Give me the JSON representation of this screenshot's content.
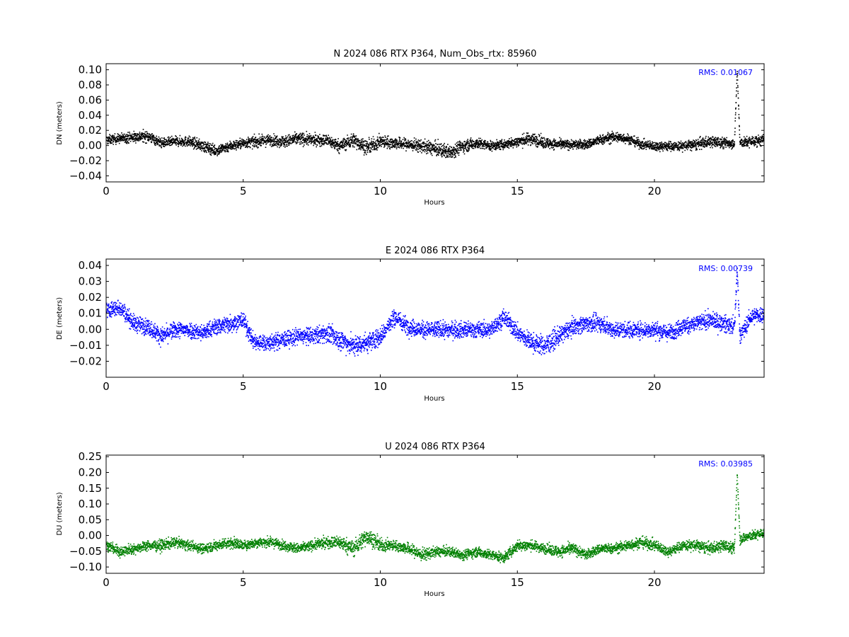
{
  "chart_data": [
    {
      "type": "scatter",
      "title": "N 2024 086 RTX  P364, Num_Obs_rtx: 85960",
      "xlabel": "Hours",
      "ylabel": "DN (meters)",
      "xlim": [
        0,
        24
      ],
      "ylim": [
        -0.048,
        0.108
      ],
      "xticks": [
        0,
        5,
        10,
        15,
        20
      ],
      "yticks": [
        -0.04,
        -0.02,
        0.0,
        0.02,
        0.04,
        0.06,
        0.08,
        0.1
      ],
      "ytick_labels": [
        "−0.04",
        "−0.02",
        "0.00",
        "0.02",
        "0.04",
        "0.06",
        "0.08",
        "0.10"
      ],
      "rms_text": "RMS:  0.01067",
      "color": "#000000",
      "series": [
        {
          "x": [
            0,
            0.5,
            1.0,
            1.5,
            2.0,
            2.5,
            3.0,
            3.5,
            4.0,
            4.5,
            5.0,
            5.5,
            6.0,
            6.5,
            7.0,
            7.5,
            8.0,
            8.5,
            9.0,
            9.5,
            10.0,
            10.5,
            11.0,
            11.5,
            12.0,
            12.5,
            13.0,
            13.5,
            14.0,
            14.5,
            15.0,
            15.5,
            16.0,
            16.5,
            17.0,
            17.5,
            18.0,
            18.5,
            19.0,
            19.5,
            20.0,
            20.5,
            21.0,
            21.5,
            22.0,
            22.5,
            22.9,
            23.0,
            23.1,
            23.5,
            24.0
          ],
          "center": [
            0.008,
            0.01,
            0.012,
            0.013,
            0.004,
            0.006,
            0.006,
            0.0,
            -0.006,
            0.0,
            0.004,
            0.006,
            0.008,
            0.006,
            0.01,
            0.008,
            0.008,
            0.0,
            0.008,
            -0.002,
            0.006,
            0.004,
            0.002,
            0.0,
            -0.004,
            -0.008,
            0.0,
            0.004,
            0.0,
            0.002,
            0.006,
            0.01,
            0.004,
            0.002,
            0.002,
            0.002,
            0.008,
            0.012,
            0.01,
            0.002,
            0.0,
            0.0,
            0.0,
            0.002,
            0.006,
            0.004,
            0.004,
            0.1,
            0.004,
            0.006,
            0.008
          ],
          "spread": [
            0.012,
            0.012,
            0.014,
            0.014,
            0.012,
            0.012,
            0.013,
            0.014,
            0.014,
            0.013,
            0.013,
            0.014,
            0.014,
            0.015,
            0.016,
            0.014,
            0.015,
            0.016,
            0.018,
            0.018,
            0.016,
            0.015,
            0.015,
            0.016,
            0.018,
            0.018,
            0.016,
            0.014,
            0.012,
            0.012,
            0.014,
            0.016,
            0.014,
            0.012,
            0.012,
            0.012,
            0.012,
            0.014,
            0.012,
            0.012,
            0.012,
            0.012,
            0.012,
            0.014,
            0.014,
            0.014,
            0.012,
            0.004,
            0.012,
            0.014,
            0.014
          ]
        }
      ]
    },
    {
      "type": "scatter",
      "title": "E 2024 086 RTX  P364",
      "xlabel": "Hours",
      "ylabel": "DE (meters)",
      "xlim": [
        0,
        24
      ],
      "ylim": [
        -0.03,
        0.044
      ],
      "xticks": [
        0,
        5,
        10,
        15,
        20
      ],
      "yticks": [
        -0.02,
        -0.01,
        0.0,
        0.01,
        0.02,
        0.03,
        0.04
      ],
      "ytick_labels": [
        "−0.02",
        "−0.01",
        "0.00",
        "0.01",
        "0.02",
        "0.03",
        "0.04"
      ],
      "rms_text": "RMS:  0.00739",
      "color": "#0000ff",
      "series": [
        {
          "x": [
            0,
            0.5,
            1.0,
            1.5,
            2.0,
            2.5,
            3.0,
            3.5,
            4.0,
            4.5,
            5.0,
            5.3,
            5.5,
            6.0,
            6.5,
            7.0,
            7.5,
            8.0,
            8.5,
            9.0,
            9.5,
            10.0,
            10.5,
            11.0,
            11.5,
            12.0,
            12.5,
            13.0,
            13.5,
            14.0,
            14.5,
            15.0,
            15.5,
            16.0,
            16.5,
            17.0,
            17.5,
            18.0,
            18.5,
            19.0,
            19.5,
            20.0,
            20.5,
            21.0,
            21.5,
            22.0,
            22.5,
            22.9,
            23.0,
            23.1,
            23.5,
            24.0
          ],
          "center": [
            0.012,
            0.014,
            0.004,
            0.002,
            -0.004,
            0.0,
            0.0,
            -0.002,
            0.002,
            0.004,
            0.006,
            -0.006,
            -0.008,
            -0.008,
            -0.006,
            -0.004,
            -0.004,
            -0.002,
            -0.006,
            -0.01,
            -0.008,
            -0.004,
            0.008,
            0.002,
            0.0,
            0.0,
            0.0,
            0.0,
            0.0,
            0.0,
            0.008,
            -0.002,
            -0.008,
            -0.01,
            -0.004,
            0.002,
            0.004,
            0.004,
            0.0,
            0.0,
            0.0,
            0.0,
            -0.002,
            0.002,
            0.004,
            0.006,
            0.004,
            0.002,
            0.038,
            -0.004,
            0.008,
            0.01
          ],
          "spread": [
            0.01,
            0.01,
            0.01,
            0.01,
            0.01,
            0.01,
            0.01,
            0.01,
            0.01,
            0.011,
            0.01,
            0.01,
            0.01,
            0.01,
            0.01,
            0.01,
            0.01,
            0.011,
            0.012,
            0.012,
            0.012,
            0.011,
            0.011,
            0.01,
            0.01,
            0.01,
            0.01,
            0.01,
            0.01,
            0.009,
            0.01,
            0.011,
            0.011,
            0.012,
            0.011,
            0.01,
            0.01,
            0.01,
            0.01,
            0.01,
            0.01,
            0.01,
            0.01,
            0.01,
            0.01,
            0.01,
            0.01,
            0.01,
            0.004,
            0.01,
            0.01,
            0.01
          ]
        }
      ]
    },
    {
      "type": "scatter",
      "title": "U 2024 086 RTX  P364",
      "xlabel": "Hours",
      "ylabel": "DU (meters)",
      "xlim": [
        0,
        24
      ],
      "ylim": [
        -0.12,
        0.255
      ],
      "xticks": [
        0,
        5,
        10,
        15,
        20
      ],
      "yticks": [
        -0.1,
        -0.05,
        0.0,
        0.05,
        0.1,
        0.15,
        0.2,
        0.25
      ],
      "ytick_labels": [
        "−0.10",
        "−0.05",
        "0.00",
        "0.05",
        "0.10",
        "0.15",
        "0.20",
        "0.25"
      ],
      "rms_text": "RMS:  0.03985",
      "color": "#008000",
      "series": [
        {
          "x": [
            0,
            0.5,
            1.0,
            1.5,
            2.0,
            2.5,
            3.0,
            3.5,
            4.0,
            4.5,
            5.0,
            5.5,
            6.0,
            6.5,
            7.0,
            7.5,
            8.0,
            8.5,
            9.0,
            9.5,
            10.0,
            10.5,
            11.0,
            11.5,
            12.0,
            12.5,
            13.0,
            13.5,
            14.0,
            14.5,
            15.0,
            15.5,
            16.0,
            16.5,
            17.0,
            17.5,
            18.0,
            18.5,
            19.0,
            19.5,
            20.0,
            20.5,
            21.0,
            21.5,
            22.0,
            22.5,
            22.9,
            23.0,
            23.1,
            23.5,
            24.0
          ],
          "center": [
            -0.03,
            -0.05,
            -0.04,
            -0.03,
            -0.03,
            -0.02,
            -0.03,
            -0.04,
            -0.03,
            -0.02,
            -0.03,
            -0.02,
            -0.02,
            -0.03,
            -0.04,
            -0.03,
            -0.02,
            -0.02,
            -0.04,
            0.0,
            -0.03,
            -0.03,
            -0.04,
            -0.06,
            -0.05,
            -0.05,
            -0.06,
            -0.05,
            -0.06,
            -0.07,
            -0.03,
            -0.03,
            -0.04,
            -0.05,
            -0.04,
            -0.06,
            -0.04,
            -0.04,
            -0.03,
            -0.02,
            -0.03,
            -0.05,
            -0.03,
            -0.03,
            -0.04,
            -0.03,
            -0.04,
            0.2,
            -0.01,
            0.0,
            0.01
          ],
          "spread": [
            0.03,
            0.035,
            0.03,
            0.03,
            0.035,
            0.03,
            0.03,
            0.03,
            0.03,
            0.035,
            0.03,
            0.03,
            0.03,
            0.03,
            0.03,
            0.03,
            0.035,
            0.04,
            0.05,
            0.05,
            0.04,
            0.03,
            0.035,
            0.04,
            0.03,
            0.03,
            0.03,
            0.03,
            0.03,
            0.03,
            0.035,
            0.03,
            0.03,
            0.035,
            0.035,
            0.03,
            0.03,
            0.03,
            0.035,
            0.035,
            0.035,
            0.03,
            0.03,
            0.035,
            0.035,
            0.035,
            0.035,
            0.01,
            0.03,
            0.03,
            0.03
          ]
        }
      ]
    }
  ]
}
